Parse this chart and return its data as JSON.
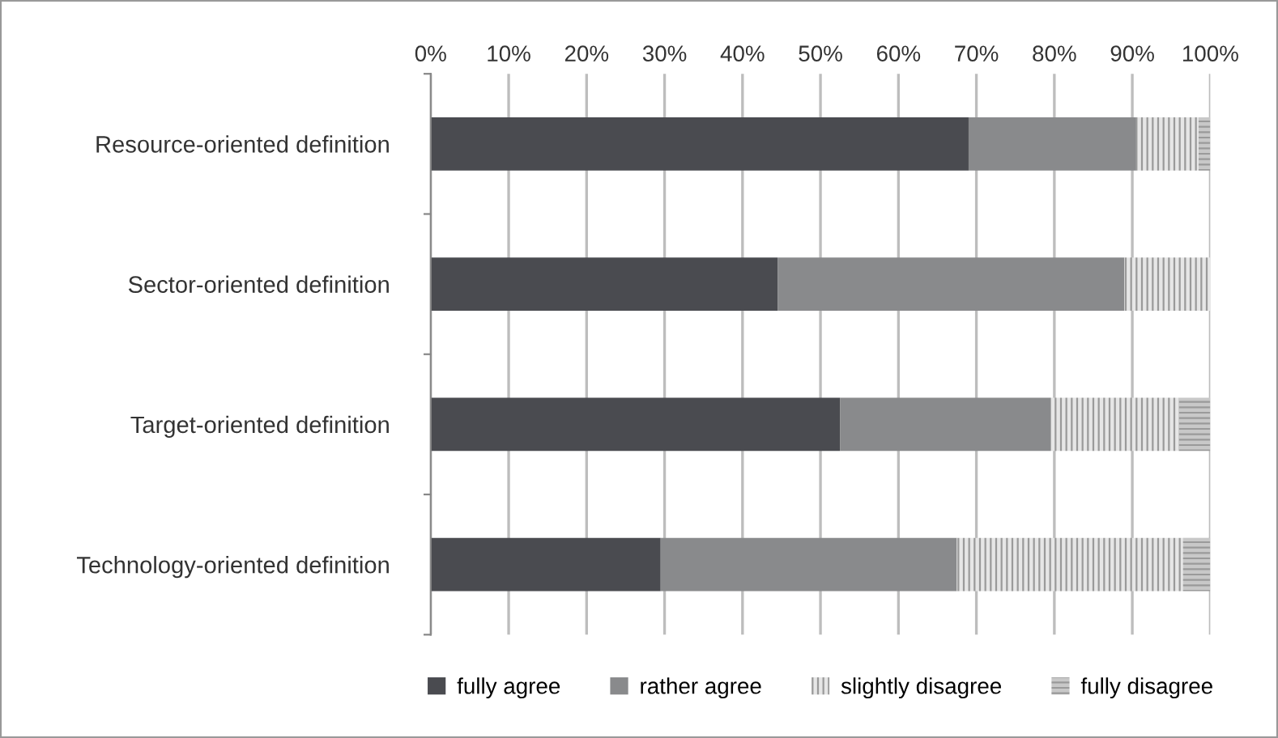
{
  "chart_data": {
    "type": "bar",
    "orientation": "horizontal",
    "stacked": true,
    "categories": [
      "Resource-oriented definition",
      "Sector-oriented definition",
      "Target-oriented definition",
      "Technology-oriented definition"
    ],
    "series": [
      {
        "name": "fully agree",
        "color": "#4a4b50",
        "values": [
          69,
          44.5,
          52.5,
          29.5
        ]
      },
      {
        "name": "rather agree",
        "color": "#898a8c",
        "values": [
          21.5,
          44.5,
          27,
          38
        ]
      },
      {
        "name": "slightly disagree",
        "color": "#e6e6e6",
        "values": [
          8,
          11,
          16.5,
          29
        ]
      },
      {
        "name": "fully disagree",
        "color": "#c8c8c8",
        "values": [
          1.5,
          0,
          4,
          3.5
        ]
      }
    ],
    "xlim": [
      0,
      100
    ],
    "xticks": [
      {
        "value": 0,
        "label": "0%"
      },
      {
        "value": 10,
        "label": "10%"
      },
      {
        "value": 20,
        "label": "20%"
      },
      {
        "value": 30,
        "label": "30%"
      },
      {
        "value": 40,
        "label": "40%"
      },
      {
        "value": 50,
        "label": "50%"
      },
      {
        "value": 60,
        "label": "60%"
      },
      {
        "value": 70,
        "label": "70%"
      },
      {
        "value": 80,
        "label": "80%"
      },
      {
        "value": 90,
        "label": "90%"
      },
      {
        "value": 100,
        "label": "100%"
      }
    ],
    "grid": "x",
    "legend": "bottom"
  }
}
